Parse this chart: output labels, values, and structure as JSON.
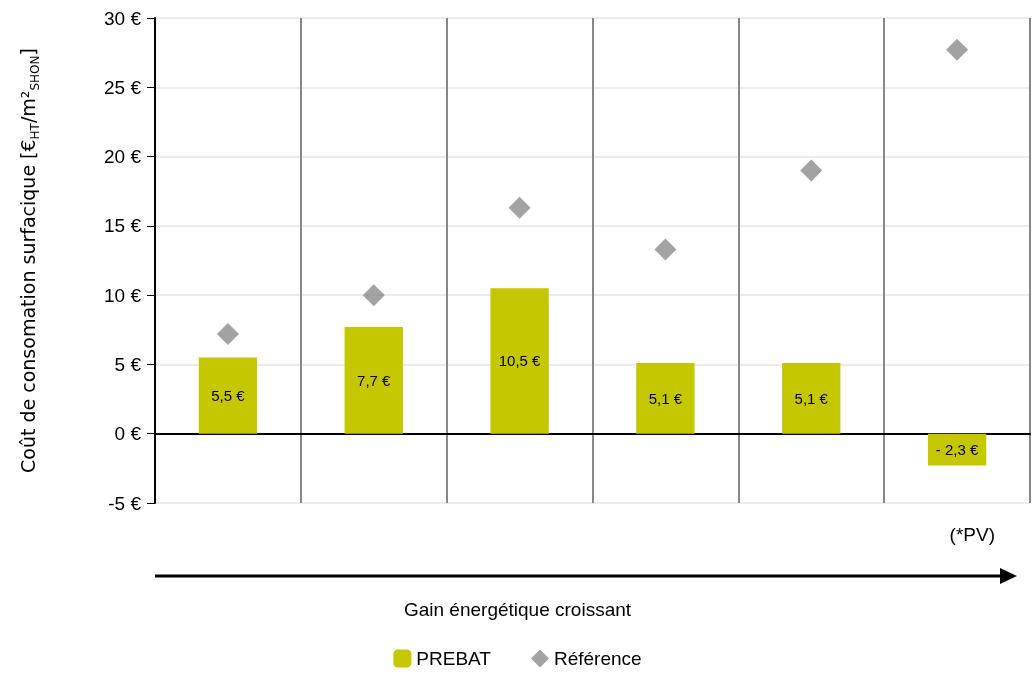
{
  "chart_data": {
    "type": "bar",
    "ylabel": "Coût de consomation surfacique [€$_{HT}$/m²$_{SHON}$]",
    "categories": [
      null,
      null,
      null,
      null,
      null,
      null
    ],
    "series": [
      {
        "name": "PREBAT",
        "color": "#c5c800",
        "values": [
          5.5,
          7.7,
          10.5,
          5.1,
          5.1,
          -2.3
        ],
        "value_labels": [
          "5,5 €",
          "7,7 €",
          "10,5 €",
          "5,1 €",
          "5,1 €",
          "- 2,3 €"
        ]
      },
      {
        "name": "Référence",
        "type": "scatter",
        "marker": "diamond",
        "color": "#8c8c8c",
        "values": [
          7.2,
          10.0,
          16.3,
          13.3,
          19.0,
          27.7
        ]
      }
    ],
    "ylim": [
      -5,
      30
    ],
    "yticks": [
      {
        "value": -5,
        "label": "-5 €"
      },
      {
        "value": 0,
        "label": "0 €"
      },
      {
        "value": 5,
        "label": "5 €"
      },
      {
        "value": 10,
        "label": "10 €"
      },
      {
        "value": 15,
        "label": "15 €"
      },
      {
        "value": 20,
        "label": "20 €"
      },
      {
        "value": 25,
        "label": "25 €"
      },
      {
        "value": 30,
        "label": "30 €"
      }
    ],
    "grid": true,
    "legend": "bottom",
    "annotations": [
      "(*PV)",
      "Gain énergétique croissant"
    ]
  }
}
